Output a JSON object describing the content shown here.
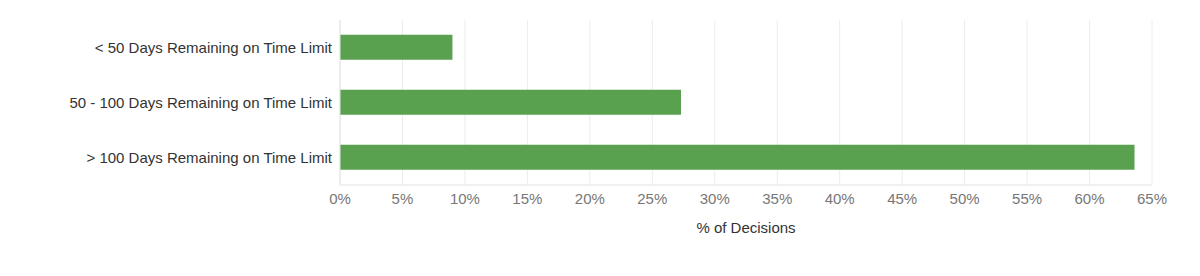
{
  "chart_data": {
    "type": "bar",
    "orientation": "horizontal",
    "categories": [
      "< 50 Days Remaining on Time Limit",
      "50 - 100 Days Remaining on Time Limit",
      "> 100 Days Remaining on Time Limit"
    ],
    "values": [
      9.0,
      27.3,
      63.6
    ],
    "color": "#59a14f",
    "xlabel": "% of Decisions",
    "xlim": [
      0,
      65
    ],
    "xticks": [
      {
        "value": 0,
        "label": "0%"
      },
      {
        "value": 5,
        "label": "5%"
      },
      {
        "value": 10,
        "label": "10%"
      },
      {
        "value": 15,
        "label": "15%"
      },
      {
        "value": 20,
        "label": "20%"
      },
      {
        "value": 25,
        "label": "25%"
      },
      {
        "value": 30,
        "label": "30%"
      },
      {
        "value": 35,
        "label": "35%"
      },
      {
        "value": 40,
        "label": "40%"
      },
      {
        "value": 45,
        "label": "45%"
      },
      {
        "value": 50,
        "label": "50%"
      },
      {
        "value": 55,
        "label": "55%"
      },
      {
        "value": 60,
        "label": "60%"
      },
      {
        "value": 65,
        "label": "65%"
      }
    ],
    "grid": true
  }
}
